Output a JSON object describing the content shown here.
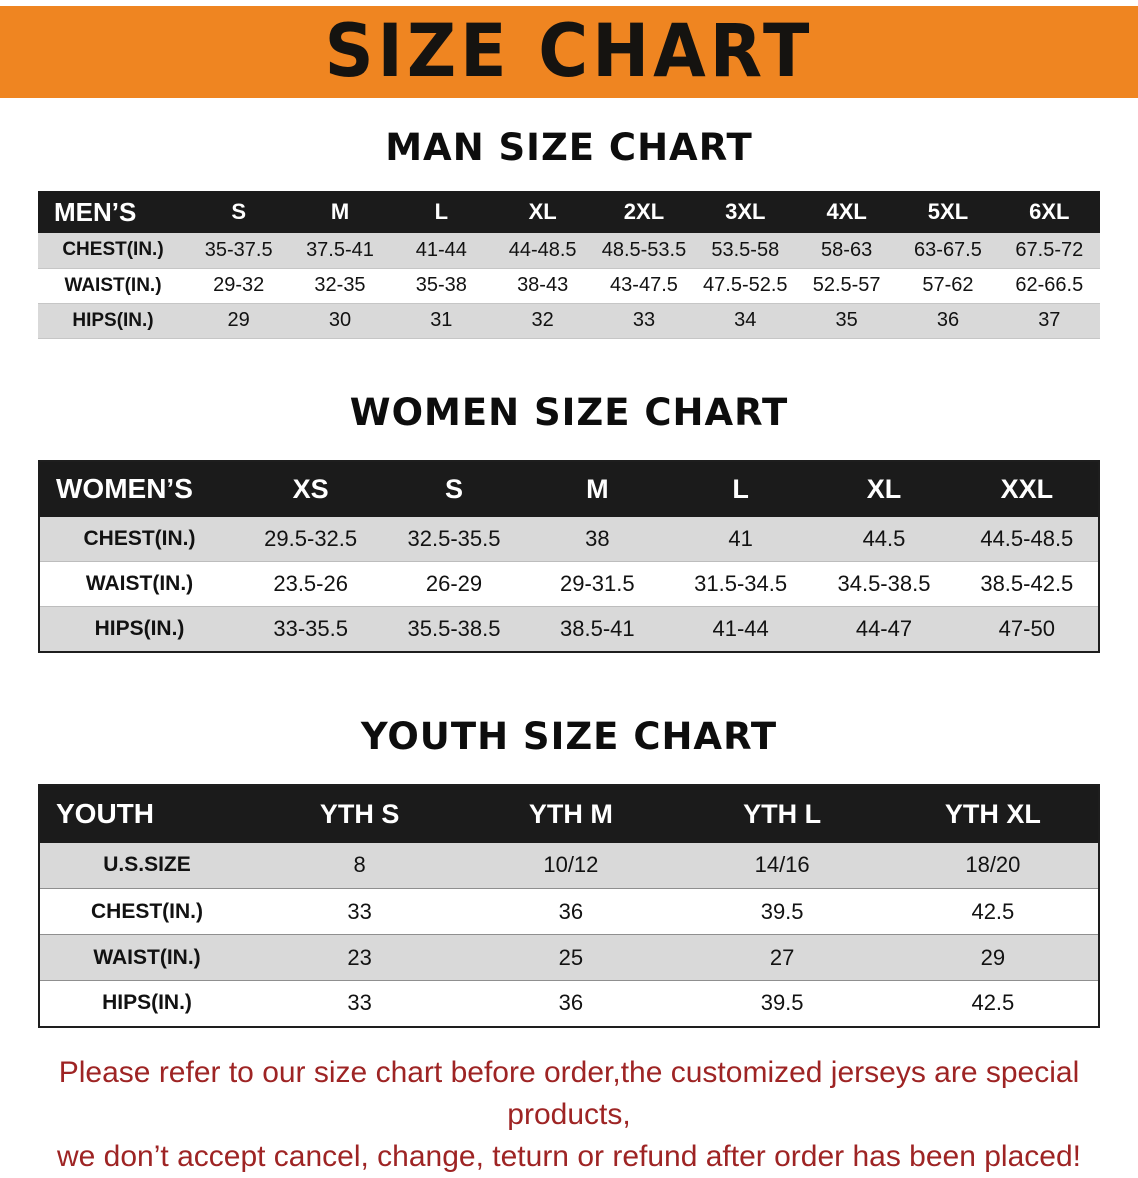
{
  "colors": {
    "banner-bg": "#EF8521",
    "table-header-bg": "#1B1B1B",
    "row-alt": "#D9D9D9",
    "notice-color": "#9E2424"
  },
  "banner": {
    "title": "SIZE CHART"
  },
  "sections": {
    "men": {
      "heading": "MAN SIZE CHART"
    },
    "women": {
      "heading": "WOMEN SIZE CHART"
    },
    "youth": {
      "heading": "YOUTH SIZE CHART"
    }
  },
  "tables": {
    "men": {
      "header": [
        "MEN’S",
        "S",
        "M",
        "L",
        "XL",
        "2XL",
        "3XL",
        "4XL",
        "5XL",
        "6XL"
      ],
      "rows": [
        [
          "CHEST(IN.)",
          "35-37.5",
          "37.5-41",
          "41-44",
          "44-48.5",
          "48.5-53.5",
          "53.5-58",
          "58-63",
          "63-67.5",
          "67.5-72"
        ],
        [
          "WAIST(IN.)",
          "29-32",
          "32-35",
          "35-38",
          "38-43",
          "43-47.5",
          "47.5-52.5",
          "52.5-57",
          "57-62",
          "62-66.5"
        ],
        [
          "HIPS(IN.)",
          "29",
          "30",
          "31",
          "32",
          "33",
          "34",
          "35",
          "36",
          "37"
        ]
      ]
    },
    "women": {
      "header": [
        "WOMEN’S",
        "XS",
        "S",
        "M",
        "L",
        "XL",
        "XXL"
      ],
      "rows": [
        [
          "CHEST(IN.)",
          "29.5-32.5",
          "32.5-35.5",
          "38",
          "41",
          "44.5",
          "44.5-48.5"
        ],
        [
          "WAIST(IN.)",
          "23.5-26",
          "26-29",
          "29-31.5",
          "31.5-34.5",
          "34.5-38.5",
          "38.5-42.5"
        ],
        [
          "HIPS(IN.)",
          "33-35.5",
          "35.5-38.5",
          "38.5-41",
          "41-44",
          "44-47",
          "47-50"
        ]
      ]
    },
    "youth": {
      "header": [
        "YOUTH",
        "YTH S",
        "YTH M",
        "YTH L",
        "YTH XL"
      ],
      "rows": [
        [
          "U.S.SIZE",
          "8",
          "10/12",
          "14/16",
          "18/20"
        ],
        [
          "CHEST(IN.)",
          "33",
          "36",
          "39.5",
          "42.5"
        ],
        [
          "WAIST(IN.)",
          "23",
          "25",
          "27",
          "29"
        ],
        [
          "HIPS(IN.)",
          "33",
          "36",
          "39.5",
          "42.5"
        ]
      ]
    }
  },
  "notice": {
    "line1": "Please refer to our size chart before order,the customized jerseys are special products,",
    "line2": "we don’t accept cancel, change, teturn or refund after order has been placed!"
  }
}
